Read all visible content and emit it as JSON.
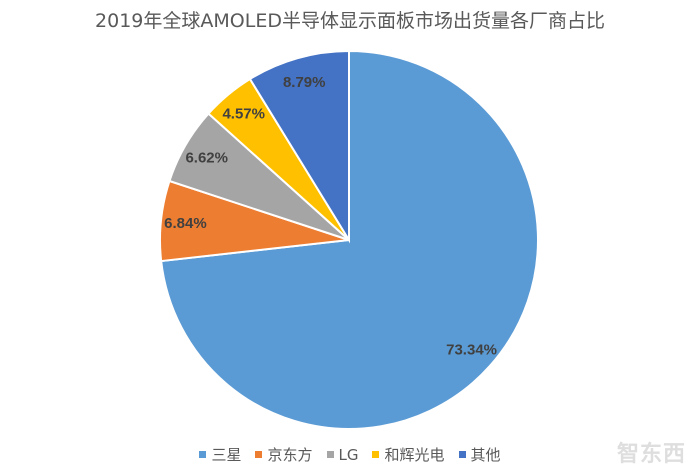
{
  "chart_data": {
    "type": "pie",
    "title": "2019年全球AMOLED半导体显示面板市场出货量各厂商占比",
    "start_angle": "12 o'clock, clockwise",
    "legend_position": "bottom",
    "slices": [
      {
        "name": "三星",
        "value": 73.34,
        "label": "73.34%",
        "color": "#5B9BD5"
      },
      {
        "name": "京东方",
        "value": 6.84,
        "label": "6.84%",
        "color": "#ED7D31"
      },
      {
        "name": "LG",
        "value": 6.62,
        "label": "6.62%",
        "color": "#A5A5A5"
      },
      {
        "name": "和辉光电",
        "value": 4.57,
        "label": "4.57%",
        "color": "#FFC000"
      },
      {
        "name": "其他",
        "value": 8.79,
        "label": "8.79%",
        "color": "#4472C4"
      }
    ]
  },
  "watermark": "智东西"
}
